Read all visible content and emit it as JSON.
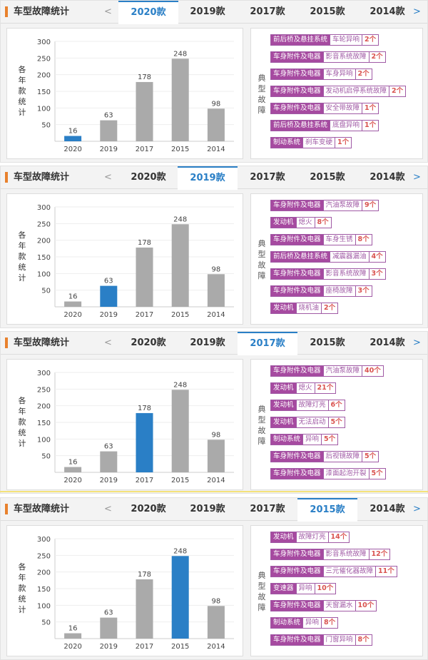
{
  "header": {
    "title": "车型故障统计",
    "prev": "<",
    "next": ">",
    "tabs": [
      "2020款",
      "2019款",
      "2017款",
      "2015款",
      "2014款"
    ]
  },
  "y_axis_label": "各年款统计",
  "faults_label": "典型故障",
  "colors": {
    "accent": "#2a7fc6",
    "bar": "#aaaaaa",
    "tag": "#a64aa0",
    "count": "#d9534f"
  },
  "chart_data": {
    "type": "bar",
    "categories": [
      "2020",
      "2019",
      "2017",
      "2015",
      "2014"
    ],
    "values": [
      16,
      63,
      178,
      248,
      98
    ],
    "ylim": [
      0,
      300
    ],
    "yticks": [
      50,
      100,
      150,
      200,
      250,
      300
    ],
    "ylabel": "各年款统计"
  },
  "panels": [
    {
      "active": 0,
      "faults": [
        [
          "前后桥及悬挂系统",
          "车轮异响",
          "2个"
        ],
        [
          "车身附件及电器",
          "影音系统故障",
          "2个"
        ],
        [
          "车身附件及电器",
          "车身异响",
          "2个"
        ],
        [
          "车身附件及电器",
          "发动机启停系统故障",
          "2个"
        ],
        [
          "车身附件及电器",
          "安全带故障",
          "1个"
        ],
        [
          "前后桥及悬挂系统",
          "底盘异响",
          "1个"
        ],
        [
          "制动系统",
          "刹车变硬",
          "1个"
        ]
      ]
    },
    {
      "active": 1,
      "faults": [
        [
          "车身附件及电器",
          "汽油泵故障",
          "9个"
        ],
        [
          "发动机",
          "熄火",
          "8个"
        ],
        [
          "车身附件及电器",
          "车身生锈",
          "8个"
        ],
        [
          "前后桥及悬挂系统",
          "减震器漏油",
          "4个"
        ],
        [
          "车身附件及电器",
          "影音系统故障",
          "3个"
        ],
        [
          "车身附件及电器",
          "座椅故障",
          "3个"
        ],
        [
          "发动机",
          "烧机油",
          "2个"
        ]
      ]
    },
    {
      "active": 2,
      "faults": [
        [
          "车身附件及电器",
          "汽油泵故障",
          "40个"
        ],
        [
          "发动机",
          "熄火",
          "21个"
        ],
        [
          "发动机",
          "故障灯亮",
          "6个"
        ],
        [
          "发动机",
          "无法启动",
          "5个"
        ],
        [
          "制动系统",
          "异响",
          "5个"
        ],
        [
          "车身附件及电器",
          "后视镜故障",
          "5个"
        ],
        [
          "车身附件及电器",
          "漆面起泡开裂",
          "5个"
        ]
      ]
    },
    {
      "active": 3,
      "faults": [
        [
          "发动机",
          "故障灯亮",
          "14个"
        ],
        [
          "车身附件及电器",
          "影音系统故障",
          "12个"
        ],
        [
          "车身附件及电器",
          "三元催化器故障",
          "11个"
        ],
        [
          "变速器",
          "异响",
          "10个"
        ],
        [
          "车身附件及电器",
          "天窗漏水",
          "10个"
        ],
        [
          "制动系统",
          "异响",
          "8个"
        ],
        [
          "车身附件及电器",
          "门窗异响",
          "8个"
        ]
      ]
    }
  ]
}
